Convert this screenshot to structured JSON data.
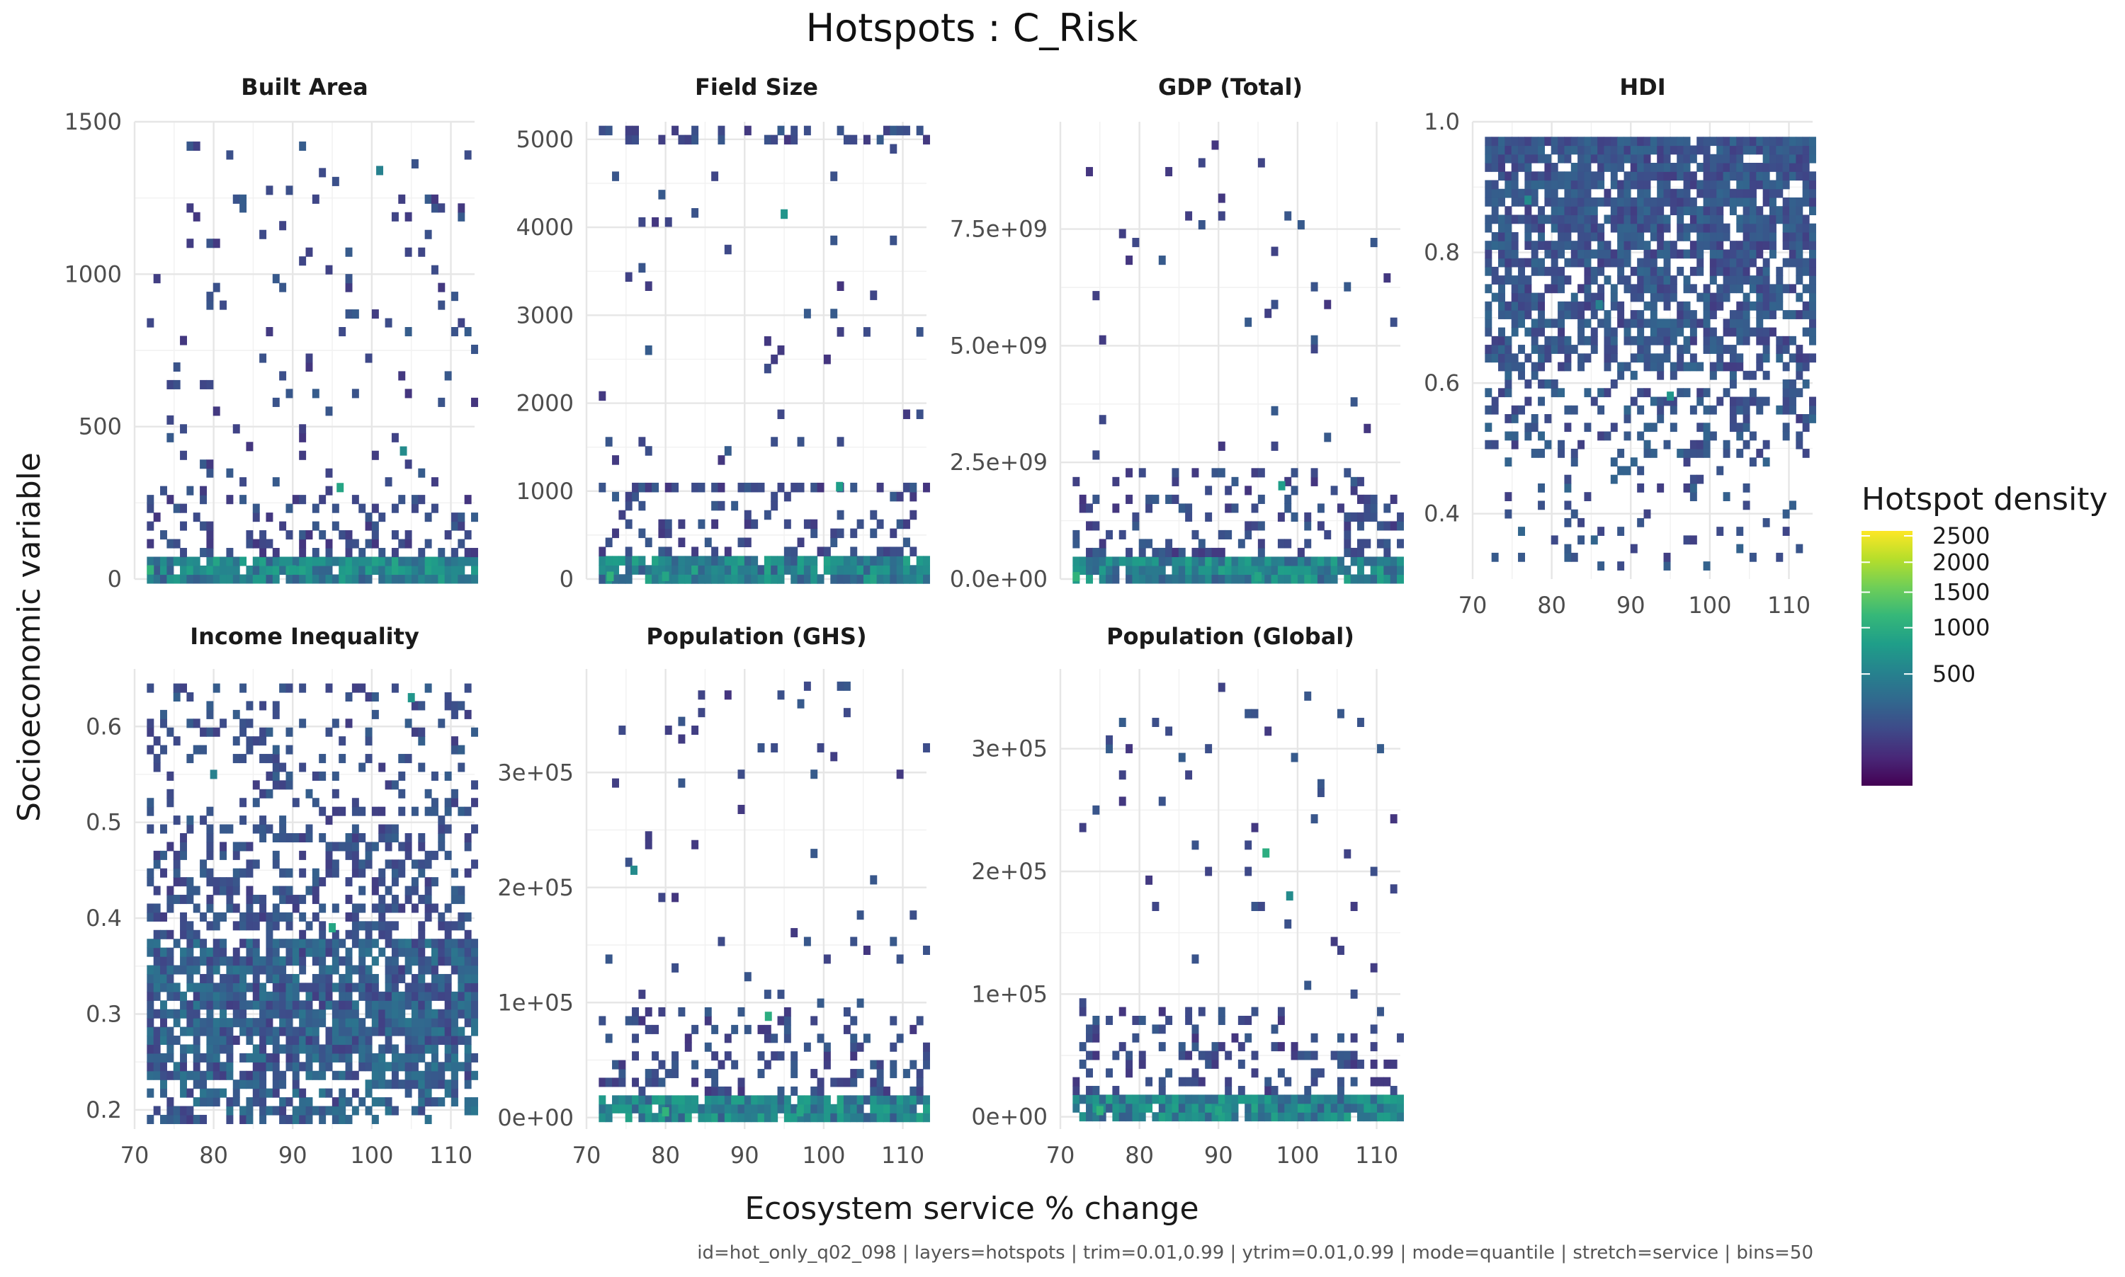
{
  "title": "Hotspots : C_Risk",
  "xlabel": "Ecosystem service % change",
  "ylabel": "Socioeconomic variable",
  "caption": "id=hot_only_q02_098 | layers=hotspots | trim=0.01,0.99 | ytrim=0.01,0.99 | mode=quantile | stretch=service | bins=50",
  "legend": {
    "title": "Hotspot density",
    "ticks": [
      "2500",
      "2000",
      "1500",
      "1000",
      "500"
    ],
    "tick_values": [
      2500,
      2000,
      1500,
      1000,
      500
    ],
    "range": [
      0,
      2600
    ],
    "transform": "sqrt",
    "colors": [
      "#440154",
      "#482878",
      "#3e4a89",
      "#31688e",
      "#26828e",
      "#1f9e89",
      "#35b779",
      "#6ece58",
      "#b5de2b",
      "#fde725"
    ]
  },
  "chart_data": {
    "type": "heatmap",
    "facets": [
      {
        "name": "Built Area",
        "xlim": [
          70,
          113
        ],
        "ylim": [
          0,
          1500
        ],
        "x_ticks": [
          70,
          80,
          90,
          100,
          110
        ],
        "x_tick_labels": [
          "70",
          "80",
          "90",
          "100",
          "110"
        ],
        "y_ticks": [
          0,
          500,
          1000,
          1500
        ],
        "y_tick_labels": [
          "0",
          "500",
          "1000",
          "1500"
        ],
        "show_x_labels": false,
        "y_min_data": 0,
        "y_max_data": 1420,
        "density": {
          "base": 0.95,
          "mid": 0.35,
          "upper": 0.06,
          "base_frac": 0.05,
          "mid_frac": 0.22
        },
        "highlights": [
          [
            96,
            300,
            900
          ],
          [
            104,
            420,
            600
          ],
          [
            101,
            1340,
            500
          ],
          [
            72,
            30,
            1100
          ],
          [
            90,
            30,
            800
          ]
        ]
      },
      {
        "name": "Field Size",
        "xlim": [
          70,
          113
        ],
        "ylim": [
          0,
          5200
        ],
        "x_ticks": [
          70,
          80,
          90,
          100,
          110
        ],
        "x_tick_labels": [
          "70",
          "80",
          "90",
          "100",
          "110"
        ],
        "y_ticks": [
          0,
          1000,
          2000,
          3000,
          4000,
          5000
        ],
        "y_tick_labels": [
          "0",
          "1000",
          "2000",
          "3000",
          "4000",
          "5000"
        ],
        "show_x_labels": false,
        "y_min_data": 0,
        "y_max_data": 5100,
        "density": {
          "base": 0.95,
          "mid": 0.25,
          "upper": 0.02,
          "base_frac": 0.06,
          "mid_frac": 0.22
        },
        "bands": [
          [
            1050,
            0.45
          ],
          [
            5050,
            0.25
          ]
        ],
        "highlights": [
          [
            95,
            4150,
            700
          ],
          [
            102,
            1050,
            800
          ],
          [
            73,
            30,
            1100
          ],
          [
            80,
            30,
            900
          ]
        ]
      },
      {
        "name": "GDP (Total)",
        "xlim": [
          70,
          113
        ],
        "ylim": [
          0,
          9800000000
        ],
        "x_ticks": [
          70,
          80,
          90,
          100,
          110
        ],
        "x_tick_labels": [
          "70",
          "80",
          "90",
          "100",
          "110"
        ],
        "y_ticks": [
          0,
          2500000000,
          5000000000,
          7500000000
        ],
        "y_tick_labels": [
          "0.0e+00",
          "2.5e+09",
          "5.0e+09",
          "7.5e+09"
        ],
        "show_x_labels": false,
        "y_min_data": 0,
        "y_max_data": 9300000000,
        "density": {
          "base": 0.95,
          "mid": 0.3,
          "upper": 0.02,
          "base_frac": 0.05,
          "mid_frac": 0.25
        },
        "highlights": [
          [
            98,
            2000000000,
            800
          ],
          [
            72,
            50000000,
            1100
          ],
          [
            95,
            50000000,
            900
          ]
        ]
      },
      {
        "name": "HDI",
        "xlim": [
          70,
          113
        ],
        "ylim": [
          0.3,
          1.0
        ],
        "x_ticks": [
          70,
          80,
          90,
          100,
          110
        ],
        "x_tick_labels": [
          "70",
          "80",
          "90",
          "100",
          "110"
        ],
        "y_ticks": [
          0.4,
          0.6,
          0.8,
          1.0
        ],
        "y_tick_labels": [
          "0.4",
          "0.6",
          "0.8",
          "1.0"
        ],
        "show_x_labels": true,
        "y_min_data": 0.32,
        "y_max_data": 0.97,
        "density": {
          "hdi": true
        },
        "highlights": [
          [
            95,
            0.58,
            700
          ],
          [
            77,
            0.88,
            600
          ],
          [
            86,
            0.72,
            500
          ]
        ]
      },
      {
        "name": "Income Inequality",
        "xlim": [
          70,
          113
        ],
        "ylim": [
          0.18,
          0.66
        ],
        "x_ticks": [
          70,
          80,
          90,
          100,
          110
        ],
        "x_tick_labels": [
          "70",
          "80",
          "90",
          "100",
          "110"
        ],
        "y_ticks": [
          0.2,
          0.3,
          0.4,
          0.5,
          0.6
        ],
        "y_tick_labels": [
          "0.2",
          "0.3",
          "0.4",
          "0.5",
          "0.6"
        ],
        "show_x_labels": true,
        "y_min_data": 0.19,
        "y_max_data": 0.64,
        "density": {
          "inequality": true
        },
        "highlights": [
          [
            95,
            0.39,
            900
          ],
          [
            105,
            0.63,
            700
          ],
          [
            80,
            0.55,
            500
          ]
        ]
      },
      {
        "name": "Population (GHS)",
        "xlim": [
          70,
          113
        ],
        "ylim": [
          -10000,
          390000
        ],
        "x_ticks": [
          70,
          80,
          90,
          100,
          110
        ],
        "x_tick_labels": [
          "70",
          "80",
          "90",
          "100",
          "110"
        ],
        "y_ticks": [
          0,
          100000,
          200000,
          300000
        ],
        "y_tick_labels": [
          "0e+00",
          "1e+05",
          "2e+05",
          "3e+05"
        ],
        "show_x_labels": true,
        "y_min_data": 0,
        "y_max_data": 375000,
        "density": {
          "base": 0.95,
          "mid": 0.3,
          "upper": 0.03,
          "base_frac": 0.05,
          "mid_frac": 0.25
        },
        "highlights": [
          [
            93,
            88000,
            1000
          ],
          [
            76,
            215000,
            600
          ],
          [
            80,
            5000,
            1100
          ],
          [
            97,
            5000,
            900
          ]
        ]
      },
      {
        "name": "Population (Global)",
        "xlim": [
          70,
          113
        ],
        "ylim": [
          -10000,
          365000
        ],
        "x_ticks": [
          70,
          80,
          90,
          100,
          110
        ],
        "x_tick_labels": [
          "70",
          "80",
          "90",
          "100",
          "110"
        ],
        "y_ticks": [
          0,
          100000,
          200000,
          300000
        ],
        "y_tick_labels": [
          "0e+00",
          "1e+05",
          "2e+05",
          "3e+05"
        ],
        "show_x_labels": true,
        "y_min_data": 0,
        "y_max_data": 350000,
        "density": {
          "base": 0.95,
          "mid": 0.3,
          "upper": 0.03,
          "base_frac": 0.05,
          "mid_frac": 0.25
        },
        "highlights": [
          [
            96,
            215000,
            1000
          ],
          [
            99,
            180000,
            600
          ],
          [
            75,
            5000,
            1100
          ],
          [
            90,
            5000,
            900
          ]
        ]
      }
    ]
  }
}
